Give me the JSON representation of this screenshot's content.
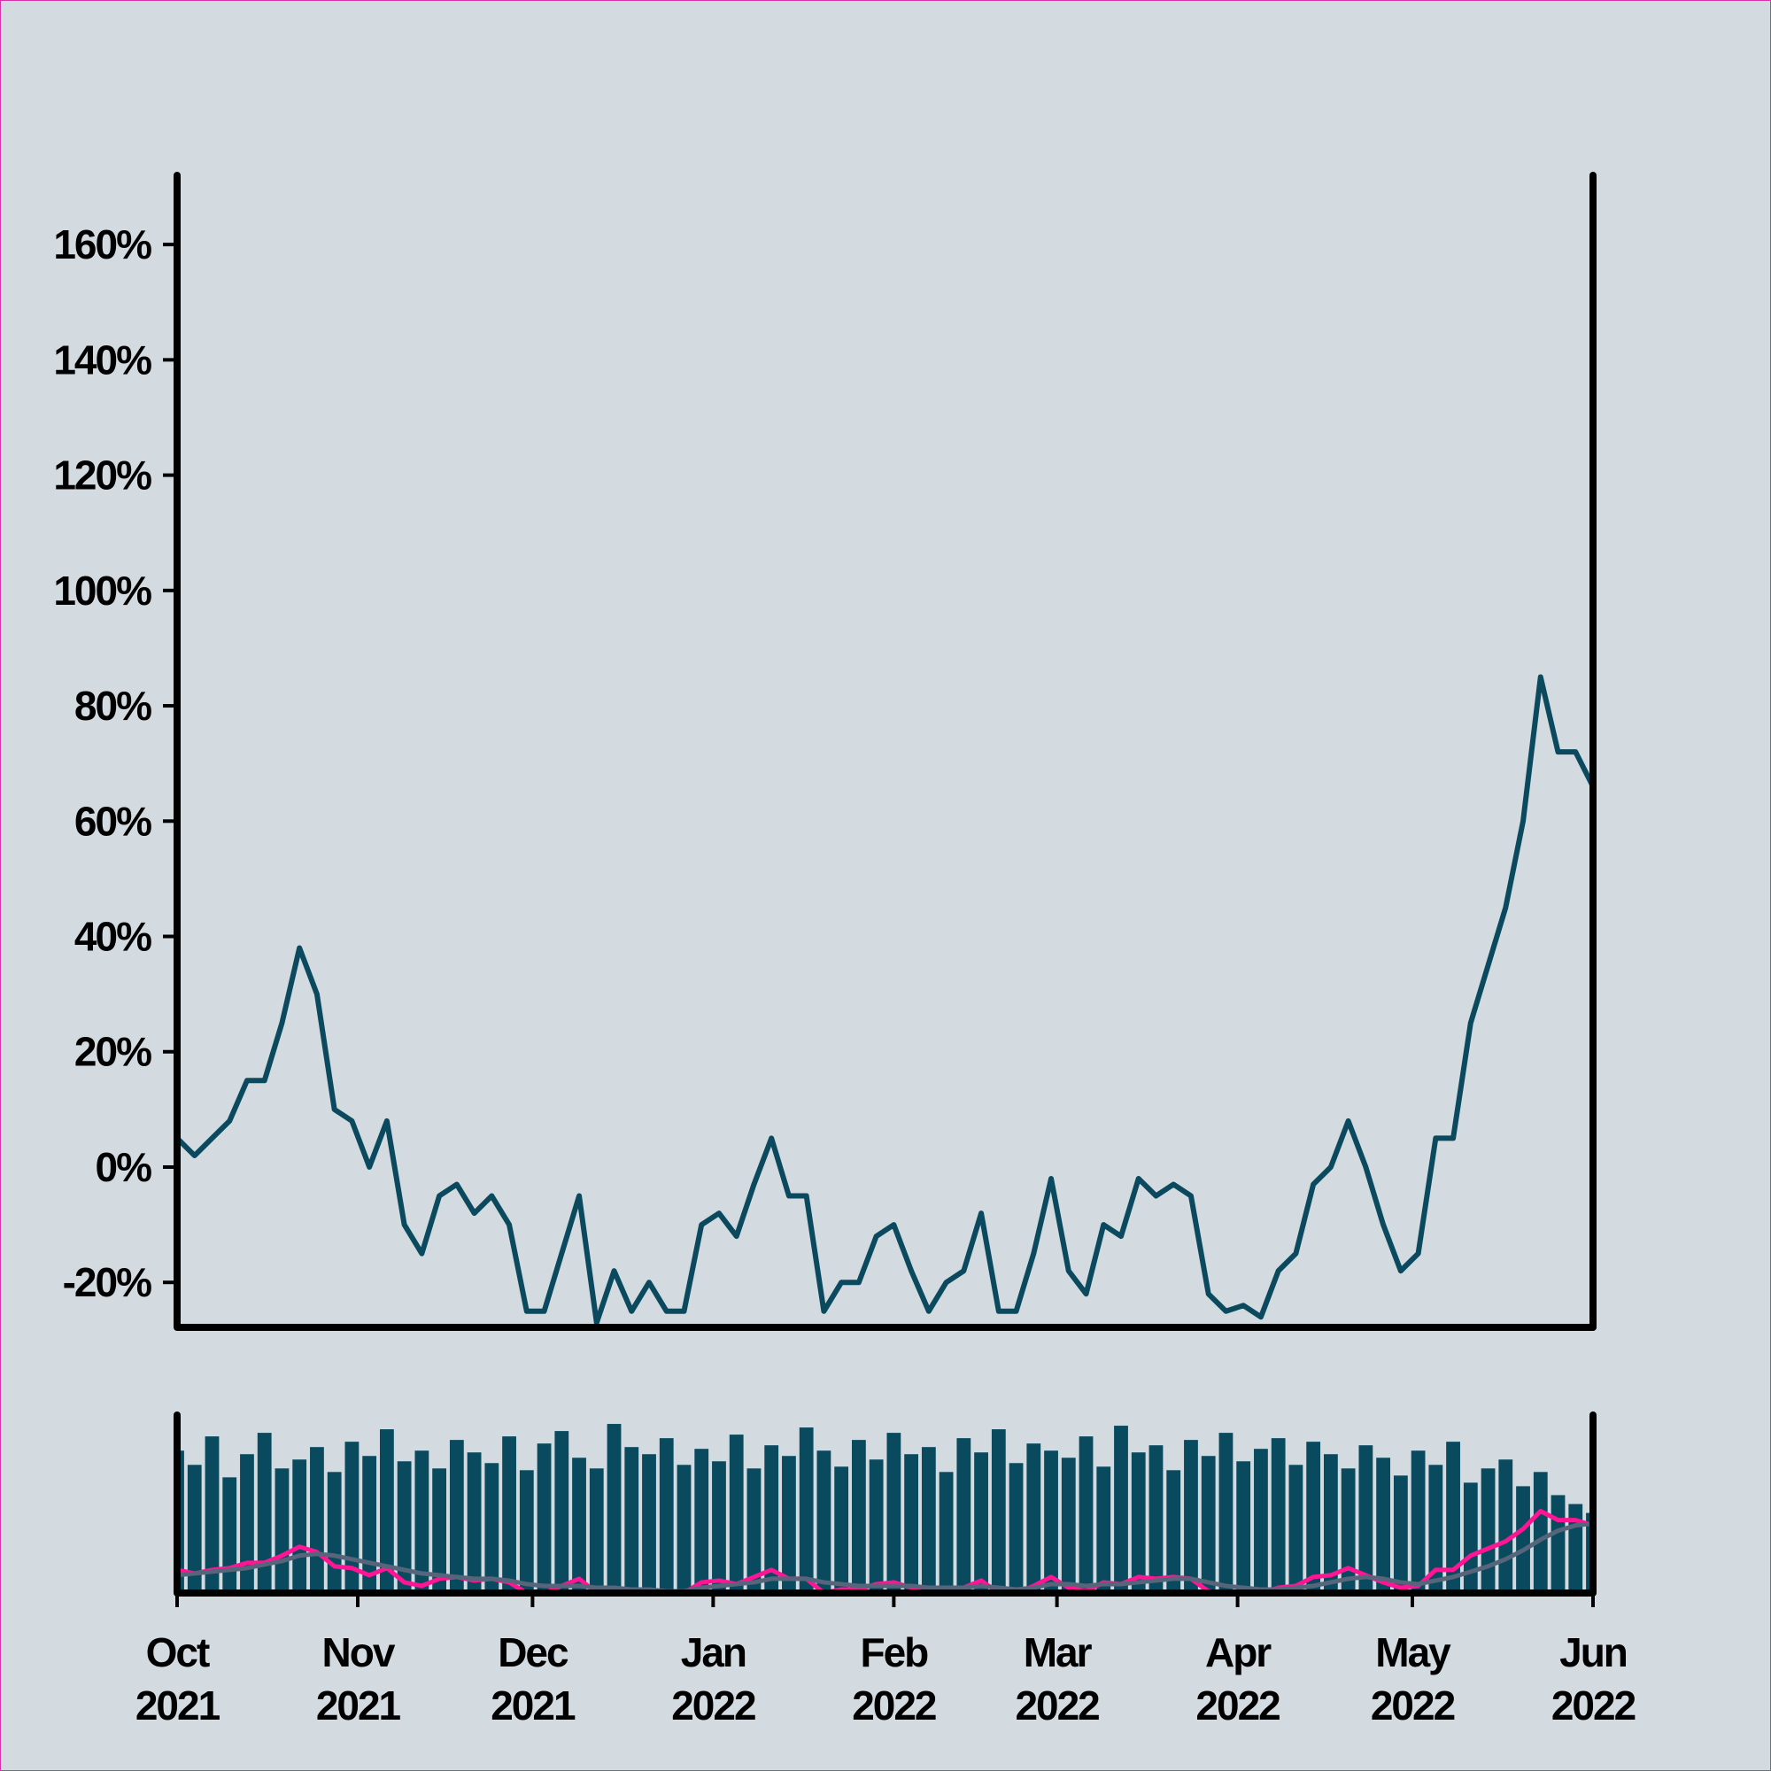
{
  "chart_data": [
    {
      "type": "line",
      "x": [
        0,
        3,
        6,
        9,
        12,
        15,
        18,
        21,
        24,
        27,
        30,
        33,
        36,
        39,
        42,
        45,
        48,
        51,
        54,
        57,
        60,
        63,
        66,
        69,
        72,
        75,
        78,
        81,
        84,
        87,
        90,
        93,
        96,
        99,
        102,
        105,
        108,
        111,
        114,
        117,
        120,
        123,
        126,
        129,
        132,
        135,
        138,
        141,
        144,
        147,
        150,
        153,
        156,
        159,
        162,
        165,
        168,
        171,
        174,
        177,
        180,
        183,
        186,
        189,
        192,
        195,
        198,
        201,
        204,
        207,
        210,
        213,
        216,
        219,
        222,
        225,
        228,
        231,
        234,
        237,
        240,
        243
      ],
      "values": [
        5,
        2,
        5,
        8,
        15,
        15,
        25,
        38,
        30,
        10,
        8,
        0,
        8,
        -10,
        -15,
        -5,
        -3,
        -8,
        -5,
        -10,
        -25,
        -25,
        -15,
        -5,
        -27,
        -18,
        -25,
        -20,
        -25,
        -25,
        -10,
        -8,
        -12,
        -3,
        5,
        -5,
        -5,
        -25,
        -20,
        -20,
        -12,
        -10,
        -18,
        -25,
        -20,
        -18,
        -8,
        -25,
        -25,
        -15,
        -2,
        -18,
        -22,
        -10,
        -12,
        -2,
        -5,
        -3,
        -5,
        -22,
        -25,
        -24,
        -26,
        -18,
        -15,
        -3,
        0,
        8,
        0,
        -10,
        -18,
        -15,
        5,
        5,
        25,
        35,
        45,
        60,
        85,
        72,
        72,
        66
      ],
      "color": "#0b4a5e",
      "xlim": [
        0,
        243
      ],
      "ylim": [
        -27.8,
        172
      ],
      "yticks": [
        {
          "value": -20,
          "label": "-20%"
        },
        {
          "value": 0,
          "label": "0%"
        },
        {
          "value": 20,
          "label": "20%"
        },
        {
          "value": 40,
          "label": "40%"
        },
        {
          "value": 60,
          "label": "60%"
        },
        {
          "value": 80,
          "label": "80%"
        },
        {
          "value": 100,
          "label": "100%"
        },
        {
          "value": 120,
          "label": "120%"
        },
        {
          "value": 140,
          "label": "140%"
        },
        {
          "value": 160,
          "label": "160%"
        }
      ]
    },
    {
      "type": "bar",
      "x": [
        0,
        3,
        6,
        9,
        12,
        15,
        18,
        21,
        24,
        27,
        30,
        33,
        36,
        39,
        42,
        45,
        48,
        51,
        54,
        57,
        60,
        63,
        66,
        69,
        72,
        75,
        78,
        81,
        84,
        87,
        90,
        93,
        96,
        99,
        102,
        105,
        108,
        111,
        114,
        117,
        120,
        123,
        126,
        129,
        132,
        135,
        138,
        141,
        144,
        147,
        150,
        153,
        156,
        159,
        162,
        165,
        168,
        171,
        174,
        177,
        180,
        183,
        186,
        189,
        192,
        195,
        198,
        201,
        204,
        207,
        210,
        213,
        216,
        219,
        222,
        225,
        228,
        231,
        234,
        237,
        240,
        243
      ],
      "values": [
        80,
        72,
        88,
        65,
        78,
        90,
        70,
        75,
        82,
        68,
        85,
        77,
        92,
        74,
        80,
        70,
        86,
        79,
        73,
        88,
        69,
        84,
        91,
        76,
        70,
        95,
        82,
        78,
        87,
        72,
        81,
        74,
        89,
        70,
        83,
        77,
        93,
        80,
        71,
        86,
        75,
        90,
        78,
        82,
        68,
        87,
        79,
        92,
        73,
        84,
        80,
        76,
        88,
        71,
        94,
        79,
        83,
        69,
        86,
        77,
        90,
        74,
        81,
        87,
        72,
        85,
        78,
        70,
        83,
        76,
        66,
        80,
        72,
        85,
        62,
        70,
        75,
        60,
        68,
        55,
        50,
        45
      ],
      "color": "#0a4a5e",
      "series": [
        {
          "color": "#ff1493",
          "values": [
            13,
            11,
            13,
            14,
            17,
            17,
            21,
            26,
            23,
            15,
            14,
            10,
            14,
            6,
            4,
            8,
            9,
            7,
            8,
            6,
            0,
            0,
            4,
            8,
            0,
            3,
            0,
            2,
            0,
            0,
            6,
            7,
            5,
            9,
            13,
            8,
            8,
            0,
            2,
            2,
            5,
            6,
            3,
            0,
            2,
            3,
            7,
            0,
            0,
            4,
            9,
            3,
            1,
            6,
            5,
            9,
            8,
            9,
            8,
            1,
            0,
            0,
            0,
            3,
            4,
            9,
            10,
            14,
            10,
            6,
            3,
            4,
            13,
            13,
            21,
            25,
            29,
            36,
            46,
            41,
            41,
            38
          ]
        },
        {
          "color": "#56657a",
          "values": [
            10,
            11,
            12,
            13,
            14,
            16,
            18,
            21,
            22,
            21,
            19,
            17,
            15,
            13,
            11,
            10,
            9,
            8,
            8,
            7,
            5,
            4,
            4,
            4,
            3,
            3,
            2,
            2,
            1,
            1,
            3,
            4,
            5,
            6,
            8,
            8,
            8,
            6,
            5,
            4,
            4,
            4,
            4,
            3,
            3,
            3,
            4,
            3,
            2,
            3,
            5,
            5,
            4,
            5,
            5,
            6,
            7,
            8,
            8,
            6,
            4,
            3,
            2,
            2,
            3,
            4,
            6,
            8,
            9,
            8,
            6,
            5,
            7,
            9,
            12,
            15,
            19,
            24,
            30,
            35,
            38,
            39
          ]
        }
      ],
      "xlim": [
        0,
        243
      ],
      "ylim": [
        0,
        100
      ],
      "xticks": [
        {
          "value": 0,
          "label": "Oct 2021"
        },
        {
          "value": 31,
          "label": "Nov 2021"
        },
        {
          "value": 61,
          "label": "Dec 2021"
        },
        {
          "value": 92,
          "label": "Jan 2022"
        },
        {
          "value": 123,
          "label": "Feb 2022"
        },
        {
          "value": 151,
          "label": "Mar 2022"
        },
        {
          "value": 182,
          "label": "Apr 2022"
        },
        {
          "value": 212,
          "label": "May 2022"
        },
        {
          "value": 243,
          "label": "Jun 2022"
        }
      ]
    }
  ]
}
